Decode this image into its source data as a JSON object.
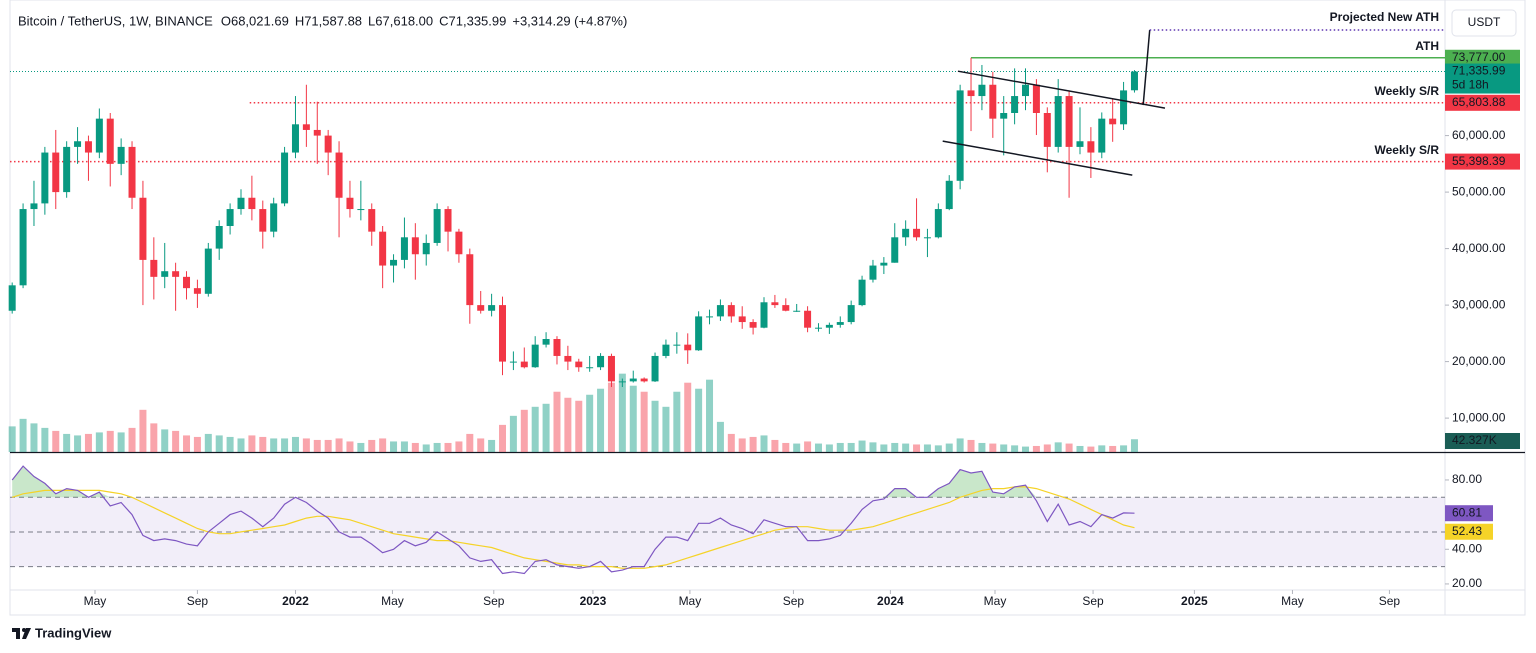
{
  "chart_data": {
    "type": "candlestick",
    "header": {
      "symbol": "Bitcoin / TetherUS, 1W, BINANCE",
      "legend": [
        {
          "key": "O",
          "text": "68,021.69"
        },
        {
          "key": "H",
          "text": "71,587.88"
        },
        {
          "key": "L",
          "text": "67,618.00"
        },
        {
          "key": "C",
          "text": "71,335.99"
        }
      ],
      "change": "+3,314.29 (+4.87%)"
    },
    "currency_button": "USDT",
    "brand": "TradingView",
    "up_color": "#089981",
    "down_color": "#f23645",
    "x": [
      0,
      1,
      2,
      3,
      4,
      5,
      6,
      7,
      8,
      9,
      10,
      11,
      12,
      13,
      14,
      15,
      16,
      17,
      18,
      19,
      20,
      21,
      22,
      23,
      24,
      25,
      26,
      27,
      28,
      29,
      30,
      31,
      32,
      33,
      34,
      35,
      36,
      37,
      38,
      39,
      40,
      41,
      42,
      43,
      44,
      45,
      46,
      47,
      48,
      49,
      50,
      51,
      52,
      53,
      54,
      55,
      56,
      57,
      58,
      59,
      60,
      61,
      62,
      63,
      64,
      65,
      66,
      67,
      68,
      69,
      70,
      71,
      72,
      73,
      74,
      75,
      76,
      77,
      78,
      79,
      80,
      81,
      82,
      83,
      84,
      85,
      86,
      87,
      88,
      89,
      90,
      91,
      92,
      93,
      94,
      95,
      96,
      97,
      98,
      99,
      100,
      101,
      102,
      103
    ],
    "xlim": [
      -0.2,
      131.5
    ],
    "xticks": [
      {
        "value": 7.6,
        "label": "May"
      },
      {
        "value": 17.0,
        "label": "Sep"
      },
      {
        "value": 26.0,
        "label": "2022"
      },
      {
        "value": 34.9,
        "label": "May"
      },
      {
        "value": 44.2,
        "label": "Sep"
      },
      {
        "value": 53.3,
        "label": "2023"
      },
      {
        "value": 62.2,
        "label": "May"
      },
      {
        "value": 71.7,
        "label": "Sep"
      },
      {
        "value": 80.6,
        "label": "2024"
      },
      {
        "value": 90.2,
        "label": "May"
      },
      {
        "value": 99.2,
        "label": "Sep"
      },
      {
        "value": 108.5,
        "label": "2025"
      },
      {
        "value": 117.5,
        "label": "May"
      },
      {
        "value": 126.4,
        "label": "Sep"
      }
    ],
    "ylim": [
      4000,
      84000
    ],
    "yticks": [
      {
        "value": 10000,
        "label": "10,000.00"
      },
      {
        "value": 20000,
        "label": "20,000.00"
      },
      {
        "value": 30000,
        "label": "30,000.00"
      },
      {
        "value": 40000,
        "label": "40,000.00"
      },
      {
        "value": 50000,
        "label": "50,000.00"
      },
      {
        "value": 60000,
        "label": "60,000.00"
      }
    ],
    "candles": [
      [
        29000,
        34000,
        28500,
        33500
      ],
      [
        33500,
        48000,
        33000,
        47000
      ],
      [
        47000,
        52000,
        44000,
        48000
      ],
      [
        48000,
        58000,
        46000,
        57000
      ],
      [
        57000,
        61000,
        47000,
        50000
      ],
      [
        50000,
        59000,
        49000,
        58000
      ],
      [
        58000,
        61500,
        55000,
        59000
      ],
      [
        59000,
        60000,
        52000,
        57000
      ],
      [
        57000,
        64800,
        56000,
        63000
      ],
      [
        63000,
        64000,
        51000,
        55000
      ],
      [
        55000,
        59500,
        53000,
        58000
      ],
      [
        58000,
        59000,
        47000,
        49000
      ],
      [
        49000,
        52000,
        30000,
        38000
      ],
      [
        38000,
        42000,
        31000,
        35000
      ],
      [
        35000,
        41000,
        33000,
        36000
      ],
      [
        36000,
        37500,
        29000,
        35000
      ],
      [
        35000,
        36000,
        31000,
        33000
      ],
      [
        33000,
        34500,
        29500,
        32000
      ],
      [
        32000,
        41000,
        31500,
        40000
      ],
      [
        40000,
        45000,
        38000,
        44000
      ],
      [
        44000,
        48000,
        42500,
        47000
      ],
      [
        47000,
        50500,
        46000,
        49000
      ],
      [
        49000,
        52900,
        45000,
        47000
      ],
      [
        47000,
        48500,
        40000,
        43000
      ],
      [
        43000,
        49000,
        42000,
        48000
      ],
      [
        48000,
        58000,
        47500,
        57000
      ],
      [
        57000,
        67000,
        56000,
        62000
      ],
      [
        62000,
        69000,
        58000,
        61000
      ],
      [
        61000,
        66000,
        55000,
        60000
      ],
      [
        60000,
        61000,
        53000,
        57000
      ],
      [
        57000,
        59000,
        42000,
        49000
      ],
      [
        49000,
        52000,
        45500,
        47000
      ],
      [
        47000,
        52000,
        45000,
        47000
      ],
      [
        47000,
        48000,
        40500,
        43000
      ],
      [
        43000,
        44000,
        33000,
        37000
      ],
      [
        37000,
        39000,
        34000,
        38000
      ],
      [
        38000,
        45500,
        36500,
        42000
      ],
      [
        42000,
        44500,
        34500,
        39000
      ],
      [
        39000,
        42500,
        37000,
        41000
      ],
      [
        41000,
        48000,
        40500,
        47000
      ],
      [
        47000,
        47500,
        39500,
        43000
      ],
      [
        43000,
        43500,
        37500,
        39000
      ],
      [
        39000,
        40000,
        26700,
        30000
      ],
      [
        30000,
        32500,
        28500,
        29000
      ],
      [
        29000,
        32000,
        28000,
        30000
      ],
      [
        30000,
        31500,
        17600,
        20000
      ],
      [
        20000,
        21800,
        18500,
        20000
      ],
      [
        20000,
        22500,
        18800,
        19000
      ],
      [
        19000,
        24500,
        18900,
        23000
      ],
      [
        23000,
        25200,
        22500,
        24000
      ],
      [
        24000,
        24500,
        19500,
        21000
      ],
      [
        21000,
        22800,
        18500,
        20000
      ],
      [
        20000,
        20500,
        18200,
        19000
      ],
      [
        19000,
        21000,
        18200,
        19000
      ],
      [
        19000,
        21500,
        18500,
        21000
      ],
      [
        21000,
        21400,
        15500,
        16500
      ],
      [
        16500,
        17000,
        15500,
        16500
      ],
      [
        16500,
        18400,
        16300,
        17000
      ],
      [
        17000,
        17200,
        16300,
        16500
      ],
      [
        16500,
        21600,
        16400,
        21000
      ],
      [
        21000,
        23900,
        20600,
        23000
      ],
      [
        23000,
        25200,
        21400,
        23000
      ],
      [
        23000,
        25000,
        19600,
        22000
      ],
      [
        22000,
        28900,
        21900,
        28000
      ],
      [
        28000,
        29200,
        26600,
        28000
      ],
      [
        28000,
        31000,
        27200,
        30000
      ],
      [
        30000,
        30500,
        26900,
        28000
      ],
      [
        28000,
        29800,
        25800,
        27000
      ],
      [
        27000,
        27500,
        24800,
        26000
      ],
      [
        26000,
        31400,
        25900,
        30500
      ],
      [
        30500,
        31800,
        29500,
        30000
      ],
      [
        30000,
        31200,
        28900,
        29000
      ],
      [
        29000,
        30200,
        28800,
        29000
      ],
      [
        29000,
        29800,
        25200,
        26000
      ],
      [
        26000,
        26800,
        25300,
        26000
      ],
      [
        26000,
        26900,
        24900,
        26500
      ],
      [
        26500,
        28000,
        26000,
        27000
      ],
      [
        27000,
        30800,
        26600,
        30000
      ],
      [
        30000,
        35200,
        29800,
        34500
      ],
      [
        34500,
        38000,
        34000,
        37000
      ],
      [
        37000,
        38500,
        35500,
        37500
      ],
      [
        37500,
        44500,
        37500,
        42000
      ],
      [
        42000,
        45000,
        40500,
        43500
      ],
      [
        43500,
        48900,
        41400,
        42000
      ],
      [
        42000,
        43500,
        38500,
        42000
      ],
      [
        42000,
        48000,
        41800,
        47000
      ],
      [
        47000,
        53000,
        46800,
        52000
      ],
      [
        52000,
        69000,
        50500,
        68000
      ],
      [
        68000,
        73777,
        60800,
        67000
      ],
      [
        67000,
        72500,
        64500,
        69000
      ],
      [
        69000,
        71300,
        59600,
        63000
      ],
      [
        63000,
        67000,
        56500,
        64000
      ],
      [
        64000,
        71900,
        62000,
        67000
      ],
      [
        67000,
        71900,
        64500,
        69000
      ],
      [
        69000,
        70000,
        60100,
        64000
      ],
      [
        64000,
        65000,
        53500,
        58000
      ],
      [
        58000,
        70000,
        57000,
        67000
      ],
      [
        67000,
        68000,
        49000,
        58000
      ],
      [
        58000,
        65000,
        56700,
        59000
      ],
      [
        59000,
        61500,
        52500,
        57000
      ],
      [
        57000,
        64100,
        56000,
        63000
      ],
      [
        63000,
        66500,
        58900,
        62000
      ],
      [
        62000,
        69500,
        61000,
        68000
      ],
      [
        68021.69,
        71587.88,
        67618,
        71335.99
      ]
    ],
    "volume": [
      85,
      110,
      95,
      80,
      70,
      60,
      55,
      60,
      65,
      70,
      65,
      80,
      140,
      95,
      75,
      70,
      55,
      50,
      60,
      55,
      50,
      45,
      55,
      50,
      45,
      45,
      50,
      45,
      40,
      40,
      45,
      35,
      30,
      40,
      45,
      35,
      35,
      30,
      25,
      30,
      30,
      35,
      60,
      45,
      40,
      90,
      120,
      140,
      150,
      160,
      200,
      180,
      170,
      190,
      210,
      230,
      260,
      220,
      200,
      170,
      150,
      200,
      230,
      210,
      240,
      100,
      60,
      45,
      50,
      55,
      40,
      30,
      28,
      35,
      28,
      25,
      30,
      30,
      38,
      32,
      25,
      30,
      28,
      25,
      25,
      22,
      28,
      45,
      40,
      30,
      28,
      25,
      22,
      18,
      20,
      25,
      32,
      28,
      20,
      18,
      22,
      20,
      22,
      42.327
    ],
    "volume_lim": [
      0,
      1500
    ],
    "volume_label": "42.327K",
    "last_price": {
      "value": 71335.99,
      "label": "71,335.99",
      "countdown": "5d 18h",
      "color": "#089981"
    },
    "levels": [
      {
        "value": 73777,
        "label": "73,777.00",
        "text": "ATH",
        "color": "#4caf50",
        "style": "solid",
        "from": 88
      },
      {
        "value": 65803.88,
        "label": "65,803.88",
        "text": "Weekly S/R",
        "color": "#f23645",
        "style": "dotted",
        "from": 21.8
      },
      {
        "value": 55398.39,
        "label": "55,398.39",
        "text": "Weekly S/R",
        "color": "#f23645",
        "style": "dotted",
        "from": -0.2
      }
    ],
    "channel": [
      [
        [
          86.8,
          71400
        ],
        [
          105.8,
          64870
        ]
      ],
      [
        [
          85.4,
          59030
        ],
        [
          102.8,
          53010
        ]
      ]
    ],
    "projection": {
      "text": "Projected New ATH",
      "color": "#5e35b1",
      "points": [
        [
          103.8,
          65400
        ],
        [
          104.4,
          78700
        ]
      ]
    },
    "rsi": {
      "color": "#7e57c2",
      "ma_color": "#f5d328",
      "values": [
        80,
        88,
        82,
        78,
        72,
        75,
        74,
        70,
        73,
        65,
        67,
        60,
        48,
        45,
        46,
        45,
        43,
        42,
        50,
        55,
        60,
        62,
        58,
        53,
        58,
        66,
        70,
        67,
        62,
        58,
        50,
        47,
        47,
        43,
        38,
        40,
        45,
        42,
        44,
        50,
        46,
        42,
        35,
        33,
        34,
        26,
        27,
        26,
        33,
        34,
        31,
        30,
        29,
        30,
        33,
        27,
        28,
        30,
        30,
        40,
        47,
        47,
        45,
        55,
        55,
        58,
        54,
        52,
        49,
        57,
        55,
        53,
        53,
        45,
        45,
        46,
        48,
        55,
        63,
        68,
        69,
        75,
        75,
        70,
        70,
        75,
        78,
        86,
        84,
        85,
        73,
        72,
        76,
        77,
        68,
        56,
        66,
        54,
        56,
        53,
        60,
        58,
        61,
        60.81
      ],
      "ma": [
        70,
        72,
        73,
        74,
        74,
        74,
        74,
        74,
        74,
        73,
        72,
        70,
        67,
        64,
        61,
        58,
        55,
        52,
        50,
        49,
        49,
        50,
        51,
        52,
        53,
        54,
        56,
        58,
        59,
        59,
        58,
        57,
        55,
        53,
        51,
        49,
        48,
        47,
        46,
        45,
        45,
        44,
        43,
        42,
        41,
        39,
        37,
        35,
        34,
        33,
        32,
        31,
        31,
        30,
        30,
        30,
        29,
        29,
        29,
        30,
        31,
        33,
        35,
        37,
        39,
        41,
        43,
        45,
        47,
        49,
        51,
        52,
        53,
        53,
        52,
        51,
        51,
        51,
        52,
        53,
        55,
        57,
        59,
        61,
        63,
        65,
        67,
        70,
        72,
        74,
        75,
        75,
        76,
        76,
        75,
        73,
        71,
        69,
        66,
        63,
        60,
        57,
        54,
        52.43
      ],
      "ylim": [
        16.5,
        94.4
      ],
      "yticks": [
        {
          "value": 80,
          "label": "80.00"
        },
        {
          "value": 40,
          "label": "40.00"
        },
        {
          "value": 20,
          "label": "20.00"
        }
      ],
      "bands": [
        70,
        50,
        30
      ]
    }
  }
}
